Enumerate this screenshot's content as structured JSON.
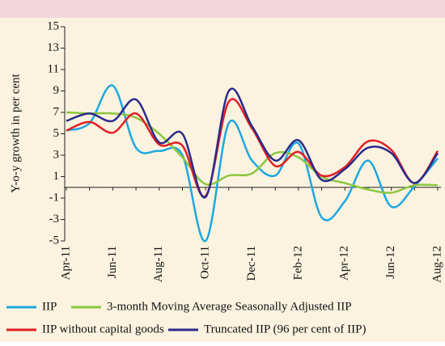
{
  "chart_data": {
    "type": "line",
    "y_label": "Y-o-y growth in per cent",
    "categories": [
      "Apr-11",
      null,
      "Jun-11",
      null,
      "Aug-11",
      null,
      "Oct-11",
      null,
      "Dec-11",
      null,
      "Feb-12",
      null,
      "Apr-12",
      null,
      "Jun-12",
      null,
      "Aug-12"
    ],
    "ylim": [
      -5,
      15
    ],
    "yticks": [
      -5,
      -3,
      -1,
      1,
      3,
      5,
      7,
      9,
      11,
      13,
      15
    ],
    "grid": false,
    "legend": "bottom",
    "series": [
      {
        "name": "IIP",
        "color": "#1ea7e1",
        "values": [
          5.3,
          6.0,
          9.5,
          3.7,
          3.4,
          3.0,
          -5.0,
          6.0,
          2.5,
          1.1,
          4.1,
          -2.8,
          -1.3,
          2.5,
          -1.8,
          0.1,
          2.7
        ]
      },
      {
        "name": "3-month Moving Average Seasonally Adjusted IIP",
        "color": "#8dc63f",
        "values": [
          7.0,
          6.9,
          6.9,
          6.5,
          5.0,
          2.8,
          0.3,
          1.1,
          1.3,
          3.2,
          2.8,
          1.0,
          0.4,
          -0.2,
          -0.5,
          0.2,
          0.2
        ]
      },
      {
        "name": "IIP without capital goods",
        "color": "#e31e24",
        "values": [
          5.3,
          6.1,
          5.1,
          6.9,
          4.0,
          3.9,
          -0.8,
          8.0,
          5.5,
          2.0,
          3.3,
          1.1,
          1.9,
          4.3,
          3.5,
          0.4,
          3.4
        ]
      },
      {
        "name": "Truncated IIP (96 per cent of IIP)",
        "color": "#2b2a8c",
        "values": [
          6.2,
          6.9,
          6.2,
          8.2,
          4.2,
          5.0,
          -0.9,
          9.0,
          5.7,
          2.5,
          4.4,
          0.7,
          1.7,
          3.7,
          3.2,
          0.4,
          3.2
        ]
      }
    ]
  }
}
